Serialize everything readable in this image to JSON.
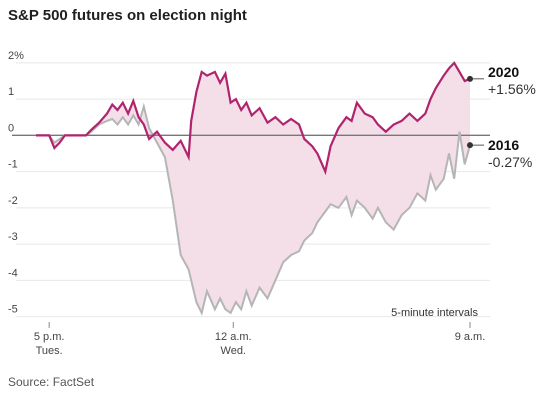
{
  "chart_data": {
    "type": "line",
    "title": "S&P 500 futures on election night",
    "note": "5-minute intervals",
    "source": "Source: FactSet",
    "xlabel": "",
    "ylabel": "",
    "ylim": [
      -5.15,
      2.3
    ],
    "xlim": [
      0,
      16.5
    ],
    "y_ticks": [
      {
        "value": 2,
        "label": "2%"
      },
      {
        "value": 1,
        "label": "1"
      },
      {
        "value": 0,
        "label": "0"
      },
      {
        "value": -1,
        "label": "-1"
      },
      {
        "value": -2,
        "label": "-2"
      },
      {
        "value": -3,
        "label": "-3"
      },
      {
        "value": -4,
        "label": "-4"
      },
      {
        "value": -5,
        "label": "-5"
      }
    ],
    "x_ticks": [
      {
        "value": 0.5,
        "line1": "5 p.m.",
        "line2": "Tues."
      },
      {
        "value": 7.5,
        "line1": "12 a.m.",
        "line2": "Wed."
      },
      {
        "value": 16.5,
        "line1": "9 a.m.",
        "line2": ""
      }
    ],
    "grid": true,
    "fill_between_series": true,
    "series": [
      {
        "name": "2020",
        "end_label": "+1.56%",
        "color": "#b0246f",
        "x": [
          0,
          0.5,
          0.7,
          0.9,
          1.1,
          1.3,
          1.6,
          1.9,
          2.1,
          2.4,
          2.7,
          2.9,
          3.1,
          3.3,
          3.5,
          3.7,
          3.9,
          4.1,
          4.3,
          4.6,
          4.9,
          5.2,
          5.5,
          5.8,
          5.9,
          6.1,
          6.3,
          6.5,
          6.8,
          7.0,
          7.2,
          7.4,
          7.6,
          7.8,
          8.0,
          8.2,
          8.5,
          8.8,
          9.1,
          9.4,
          9.7,
          10.0,
          10.2,
          10.5,
          10.7,
          11.0,
          11.2,
          11.5,
          11.8,
          12.0,
          12.2,
          12.5,
          12.8,
          13.0,
          13.3,
          13.6,
          13.9,
          14.2,
          14.5,
          14.8,
          15.0,
          15.2,
          15.5,
          15.7,
          15.9,
          16.1,
          16.3,
          16.5
        ],
        "values": [
          0,
          0,
          -0.35,
          -0.2,
          0,
          0,
          0,
          0,
          0.15,
          0.35,
          0.6,
          0.85,
          0.7,
          0.9,
          0.6,
          0.95,
          0.5,
          0.3,
          -0.1,
          0.1,
          -0.2,
          -0.4,
          -0.15,
          -0.6,
          0.4,
          1.2,
          1.75,
          1.65,
          1.75,
          1.45,
          1.7,
          0.9,
          1.0,
          0.7,
          0.9,
          0.55,
          0.75,
          0.35,
          0.5,
          0.3,
          0.45,
          0.3,
          -0.1,
          -0.3,
          -0.5,
          -1.0,
          -0.3,
          0.2,
          0.5,
          0.4,
          0.9,
          0.6,
          0.5,
          0.3,
          0.1,
          0.3,
          0.4,
          0.6,
          0.4,
          0.6,
          1.0,
          1.3,
          1.65,
          1.85,
          2.0,
          1.75,
          1.5,
          1.56
        ]
      },
      {
        "name": "2016",
        "end_label": "-0.27%",
        "color": "#b5b5b5",
        "x": [
          0,
          0.5,
          0.7,
          0.9,
          1.1,
          1.3,
          1.6,
          1.9,
          2.1,
          2.4,
          2.7,
          2.9,
          3.1,
          3.3,
          3.5,
          3.7,
          3.9,
          4.1,
          4.3,
          4.6,
          4.9,
          5.2,
          5.5,
          5.8,
          5.9,
          6.1,
          6.3,
          6.5,
          6.8,
          7.0,
          7.2,
          7.4,
          7.6,
          7.8,
          8.0,
          8.2,
          8.5,
          8.8,
          9.1,
          9.4,
          9.7,
          10.0,
          10.2,
          10.5,
          10.7,
          11.0,
          11.2,
          11.5,
          11.8,
          12.0,
          12.2,
          12.5,
          12.8,
          13.0,
          13.3,
          13.6,
          13.9,
          14.2,
          14.5,
          14.8,
          15.0,
          15.2,
          15.5,
          15.7,
          15.9,
          16.1,
          16.3,
          16.5
        ],
        "values": [
          0,
          0,
          -0.2,
          -0.1,
          0,
          0,
          0,
          0,
          0.1,
          0.3,
          0.4,
          0.45,
          0.3,
          0.5,
          0.3,
          0.55,
          0.3,
          0.8,
          0.2,
          -0.2,
          -0.6,
          -1.8,
          -3.3,
          -3.7,
          -4.0,
          -4.6,
          -4.9,
          -4.3,
          -4.8,
          -4.5,
          -4.8,
          -4.9,
          -4.6,
          -4.8,
          -4.3,
          -4.7,
          -4.2,
          -4.5,
          -4.0,
          -3.5,
          -3.3,
          -3.2,
          -2.9,
          -2.7,
          -2.4,
          -2.1,
          -1.9,
          -2.0,
          -1.7,
          -2.2,
          -1.8,
          -2.0,
          -2.3,
          -2.0,
          -2.4,
          -2.6,
          -2.2,
          -2.0,
          -1.6,
          -1.8,
          -1.1,
          -1.5,
          -1.2,
          -0.5,
          -1.2,
          0.1,
          -0.8,
          -0.27
        ]
      }
    ]
  }
}
